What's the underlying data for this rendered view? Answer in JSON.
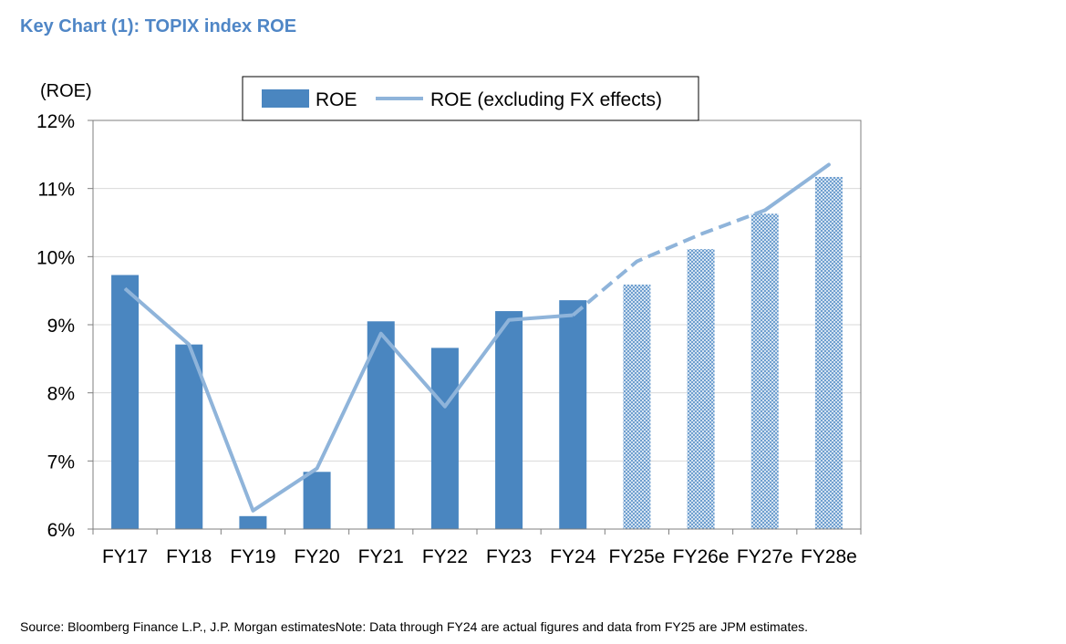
{
  "title": "Key Chart (1): TOPIX index ROE",
  "footnote": "Source: Bloomberg Finance L.P., J.P. Morgan estimatesNote: Data through FY24 are actual figures and data from FY25 are JPM estimates.",
  "chart_data": {
    "type": "bar",
    "ylabel": "(ROE)",
    "categories": [
      "FY17",
      "FY18",
      "FY19",
      "FY20",
      "FY21",
      "FY22",
      "FY23",
      "FY24",
      "FY25e",
      "FY26e",
      "FY27e",
      "FY28e"
    ],
    "ylim": [
      6,
      12
    ],
    "yticks": [
      6,
      7,
      8,
      9,
      10,
      11,
      12
    ],
    "ytick_labels": [
      "6%",
      "7%",
      "8%",
      "9%",
      "10%",
      "11%",
      "12%"
    ],
    "actual_count": 8,
    "grid": true,
    "legend_position": "top-center",
    "series": [
      {
        "name": "ROE",
        "kind": "bar",
        "color": "#4a86c0",
        "values": [
          9.73,
          8.71,
          6.19,
          6.84,
          9.05,
          8.66,
          9.2,
          9.36,
          9.59,
          10.11,
          10.63,
          11.17
        ]
      },
      {
        "name": "ROE (excluding FX effects)",
        "kind": "line",
        "color": "#8fb4da",
        "values": [
          9.53,
          8.71,
          6.27,
          6.89,
          8.87,
          7.8,
          9.07,
          9.14,
          9.93,
          10.33,
          10.68,
          11.35
        ]
      }
    ]
  }
}
